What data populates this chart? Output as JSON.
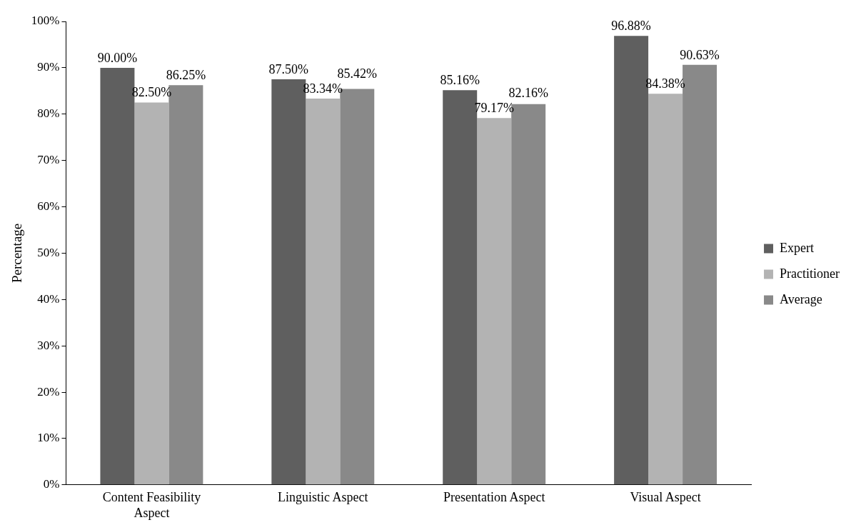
{
  "chart_data": {
    "type": "bar",
    "ylabel": "Percentage",
    "categories": [
      "Content Feasibility Aspect",
      "Linguistic Aspect",
      "Presentation Aspect",
      "Visual Aspect"
    ],
    "series": [
      {
        "name": "Expert",
        "color": "#5f5f5f",
        "values": [
          90.0,
          87.5,
          85.16,
          96.88
        ],
        "value_labels": [
          "90.00%",
          "87.50%",
          "85.16%",
          "96.88%"
        ]
      },
      {
        "name": "Practitioner",
        "color": "#b3b3b3",
        "values": [
          82.5,
          83.34,
          79.17,
          84.38
        ],
        "value_labels": [
          "82.50%",
          "83.34%",
          "79.17%",
          "84.38%"
        ]
      },
      {
        "name": "Average",
        "color": "#898989",
        "values": [
          86.25,
          85.42,
          82.16,
          90.63
        ],
        "value_labels": [
          "86.25%",
          "85.42%",
          "82.16%",
          "90.63%"
        ]
      }
    ],
    "ylim": [
      0,
      100
    ],
    "yticks": [
      {
        "value": 0,
        "label": "0%"
      },
      {
        "value": 10,
        "label": "10%"
      },
      {
        "value": 20,
        "label": "20%"
      },
      {
        "value": 30,
        "label": "30%"
      },
      {
        "value": 40,
        "label": "40%"
      },
      {
        "value": 50,
        "label": "50%"
      },
      {
        "value": 60,
        "label": "60%"
      },
      {
        "value": 70,
        "label": "70%"
      },
      {
        "value": 80,
        "label": "80%"
      },
      {
        "value": 90,
        "label": "90%"
      },
      {
        "value": 100,
        "label": "100%"
      }
    ],
    "grid": false,
    "legend": "right"
  }
}
